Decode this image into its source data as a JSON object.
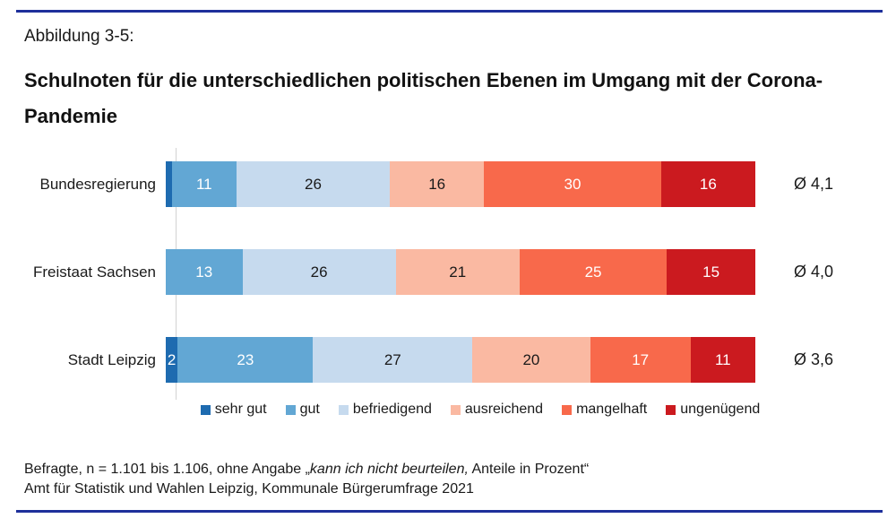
{
  "header": {
    "figure_label": "Abbildung 3-5:",
    "title": "Schulnoten für die unterschiedlichen politischen Ebenen im Umgang mit der Corona-Pandemie"
  },
  "chart_data": {
    "type": "bar",
    "subtype": "stacked-horizontal",
    "unit": "percent",
    "xlim": [
      0,
      100
    ],
    "grid": false,
    "legend_position": "bottom",
    "min_label_value": 2,
    "categories": [
      {
        "key": "sehr_gut",
        "label": "sehr gut",
        "fill": "#1e6bb0",
        "text": "#ffffff"
      },
      {
        "key": "gut",
        "label": "gut",
        "fill": "#62a7d4",
        "text": "#ffffff"
      },
      {
        "key": "befriedigend",
        "label": "befriedigend",
        "fill": "#c6daee",
        "text": "#1a1a1a"
      },
      {
        "key": "ausreichend",
        "label": "ausreichend",
        "fill": "#fab9a2",
        "text": "#1a1a1a"
      },
      {
        "key": "mangelhaft",
        "label": "mangelhaft",
        "fill": "#f8694b",
        "text": "#ffffff"
      },
      {
        "key": "ungenuegend",
        "label": "ungenügend",
        "fill": "#cb1a1f",
        "text": "#ffffff"
      }
    ],
    "rows": [
      {
        "label": "Bundesregierung",
        "average_label": "Ø 4,1",
        "values": {
          "sehr_gut": 1,
          "gut": 11,
          "befriedigend": 26,
          "ausreichend": 16,
          "mangelhaft": 30,
          "ungenuegend": 16
        }
      },
      {
        "label": "Freistaat Sachsen",
        "average_label": "Ø 4,0",
        "values": {
          "sehr_gut": 0,
          "gut": 13,
          "befriedigend": 26,
          "ausreichend": 21,
          "mangelhaft": 25,
          "ungenuegend": 15
        }
      },
      {
        "label": "Stadt Leipzig",
        "average_label": "Ø 3,6",
        "values": {
          "sehr_gut": 2,
          "gut": 23,
          "befriedigend": 27,
          "ausreichend": 20,
          "mangelhaft": 17,
          "ungenuegend": 11
        }
      }
    ]
  },
  "footer": {
    "note_prefix": "Befragte, n = 1.101 bis 1.106, ohne Angabe „",
    "note_italic": "kann ich nicht beurteilen,",
    "note_suffix": " Anteile in Prozent“",
    "source": "Amt für Statistik und Wahlen Leipzig, Kommunale Bürgerumfrage 2021"
  },
  "style": {
    "rule_color": "#1e309b",
    "axis_line_color": "#d3d3d3"
  }
}
